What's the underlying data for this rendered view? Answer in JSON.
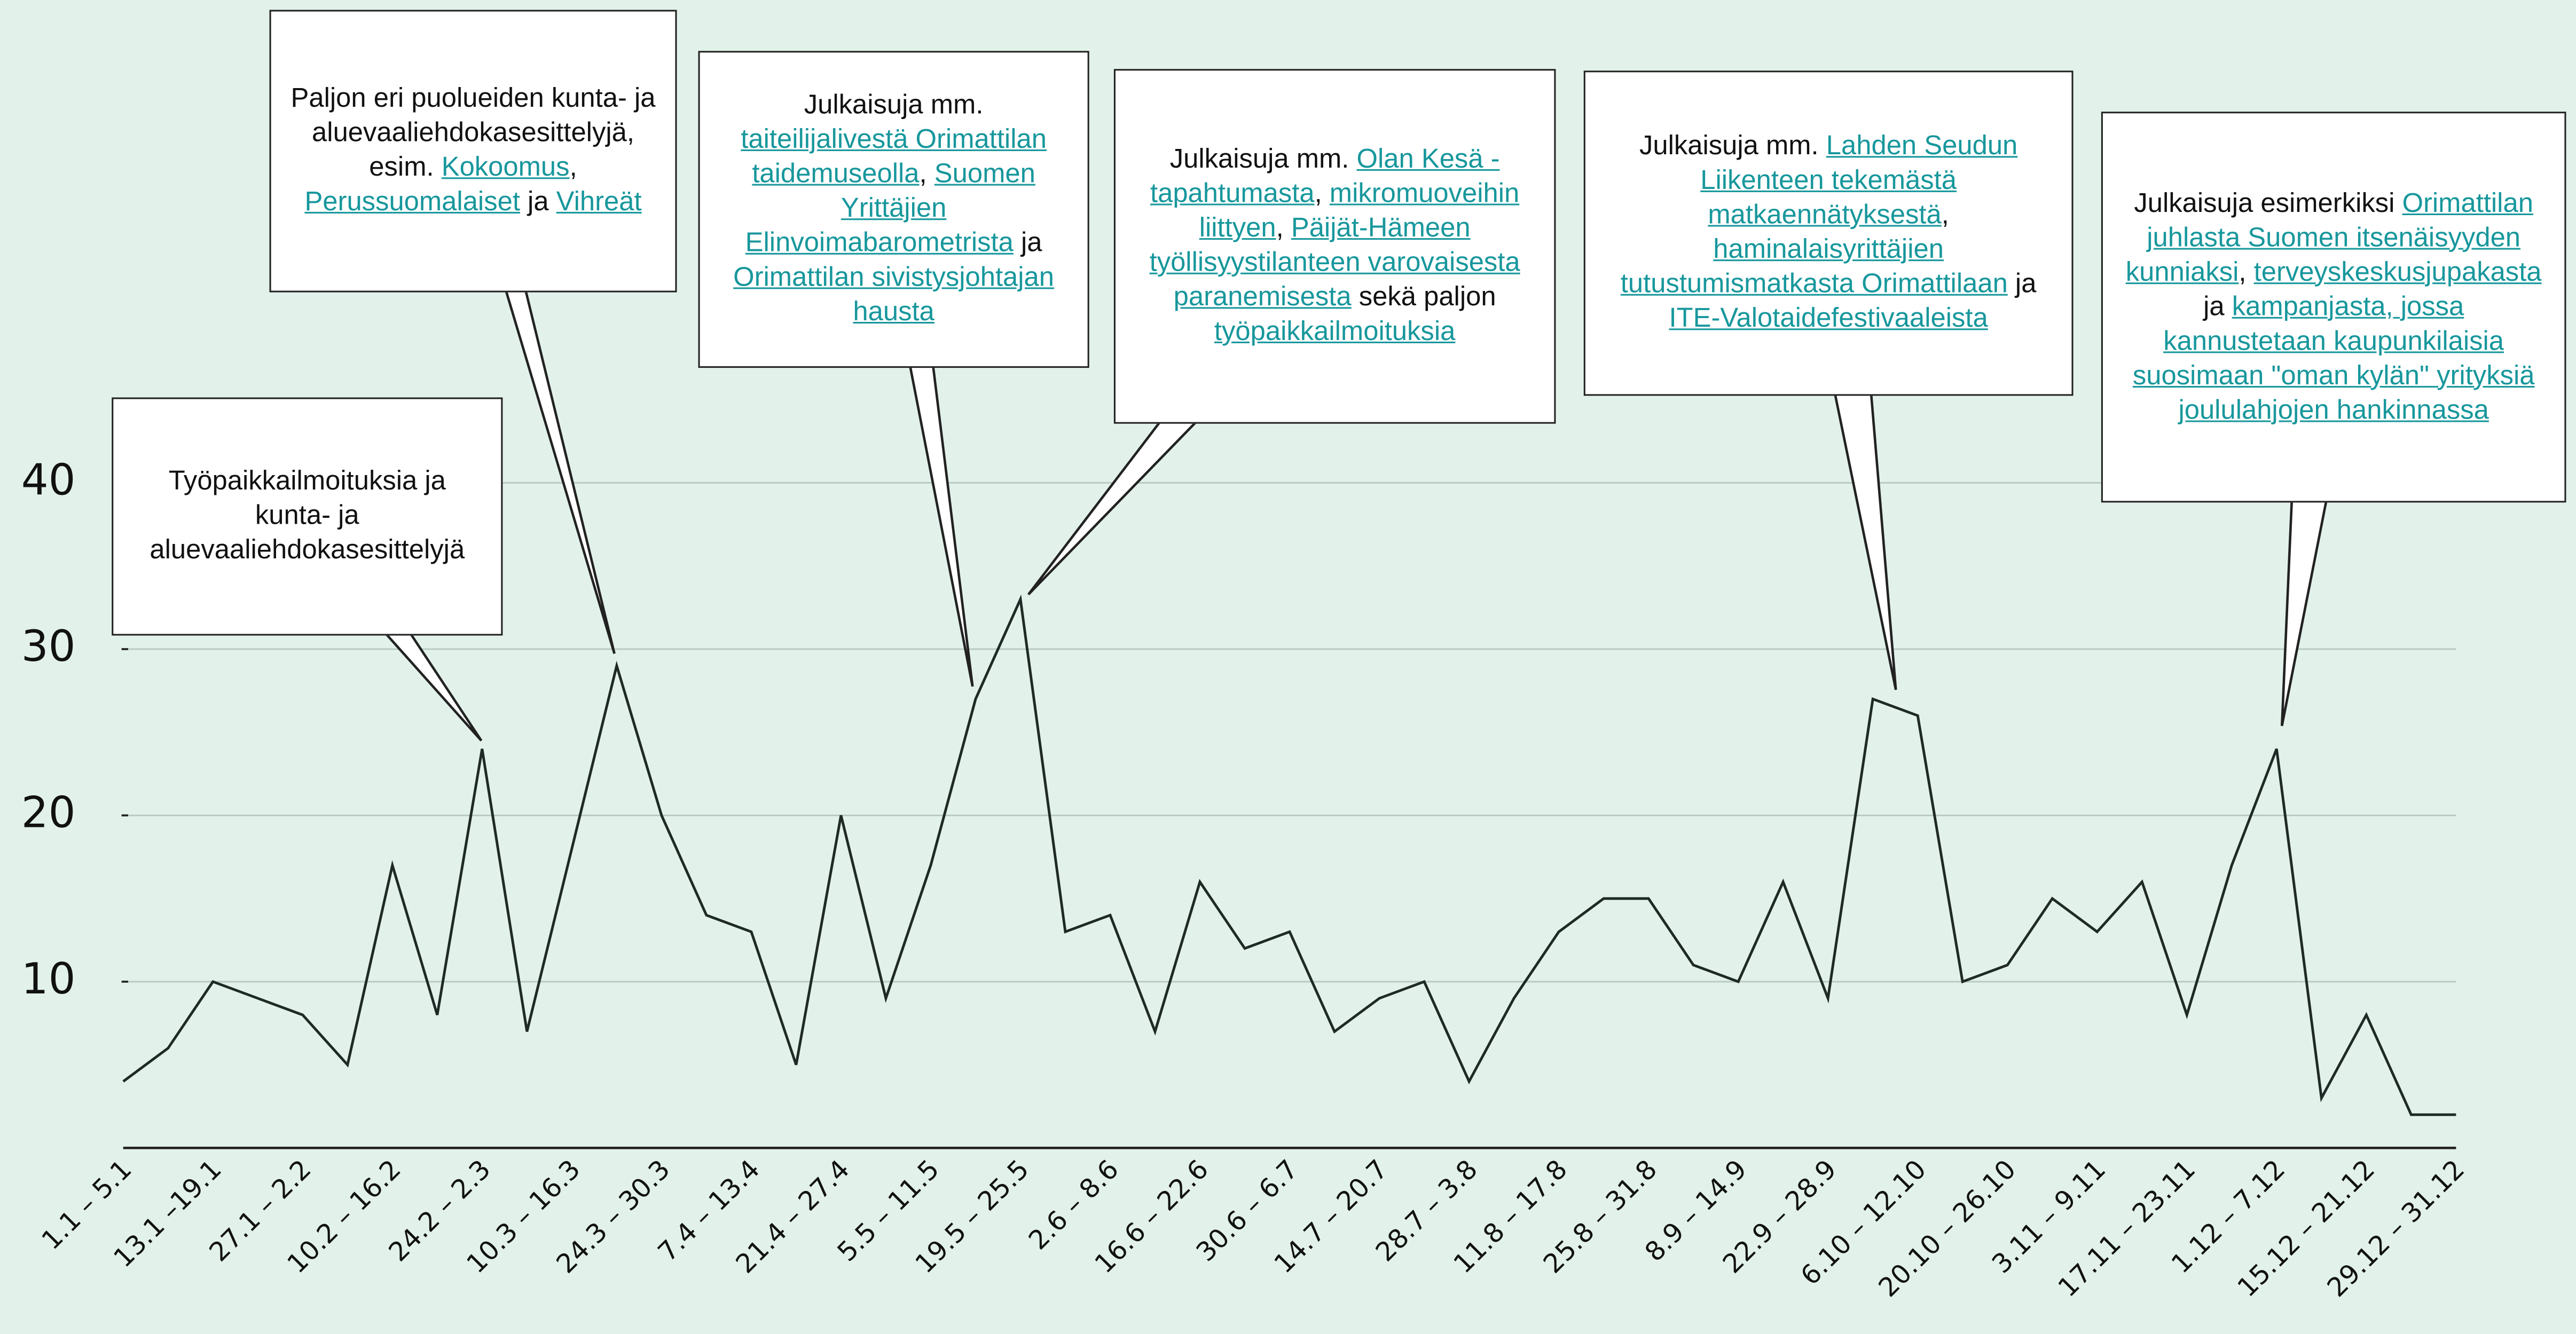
{
  "chart_data": {
    "type": "line",
    "color": "#1f2a26",
    "grid": true,
    "categories": [
      "1.1 – 5.1",
      null,
      "13.1 –19.1",
      null,
      "27.1 – 2.2",
      null,
      "10.2 – 16.2",
      null,
      "24.2 – 2.3",
      null,
      "10.3 – 16.3",
      null,
      "24.3 – 30.3",
      null,
      "7.4 – 13.4",
      null,
      "21.4 – 27.4",
      null,
      "5.5 – 11.5",
      null,
      "19.5 – 25.5",
      null,
      "2.6 – 8.6",
      null,
      "16.6 – 22.6",
      null,
      "30.6 – 6.7",
      null,
      "14.7 – 20.7",
      null,
      "28.7 – 3.8",
      null,
      "11.8 – 17.8",
      null,
      "25.8 – 31.8",
      null,
      "8.9 – 14.9",
      null,
      "22.9 – 28.9",
      null,
      "6.10 – 12.10",
      null,
      "20.10 – 26.10",
      null,
      "3.11 – 9.11",
      null,
      "17.11 – 23.11",
      null,
      "1.12 – 7.12",
      null,
      "15.12 – 21.12",
      null,
      "29.12 – 31.12"
    ],
    "values": [
      4,
      6,
      10,
      9,
      8,
      5,
      17,
      8,
      24,
      7,
      18,
      29,
      20,
      14,
      13,
      5,
      20,
      9,
      17,
      27,
      33,
      13,
      14,
      7,
      16,
      12,
      13,
      7,
      9,
      10,
      4,
      9,
      13,
      15,
      15,
      11,
      10,
      16,
      9,
      27,
      26,
      10,
      11,
      15,
      13,
      16,
      8,
      17,
      24,
      3,
      8,
      2,
      2
    ],
    "ylim": [
      0,
      40
    ],
    "yticks": [
      10,
      20,
      30,
      40
    ],
    "annotations": [
      {
        "parts": [
          {
            "text": "Työpaikkailmoituksia ja kunta- ja aluevaaliehdokasesittelyjä",
            "link": false
          }
        ]
      },
      {
        "parts": [
          {
            "text": "Paljon eri puolueiden kunta- ja aluevaaliehdokasesittelyjä, esim. ",
            "link": false
          },
          {
            "text": "Kokoomus",
            "link": true
          },
          {
            "text": ", ",
            "link": false
          },
          {
            "text": "Perussuomalaiset",
            "link": true
          },
          {
            "text": " ja ",
            "link": false
          },
          {
            "text": "Vihreät",
            "link": true
          }
        ]
      },
      {
        "parts": [
          {
            "text": "Julkaisuja mm. ",
            "link": false
          },
          {
            "text": "taiteilijalivestä Orimattilan taidemuseolla",
            "link": true
          },
          {
            "text": ", ",
            "link": false
          },
          {
            "text": "Suomen Yrittäjien Elinvoimabarometrista",
            "link": true
          },
          {
            "text": " ja ",
            "link": false
          },
          {
            "text": "Orimattilan sivistysjohtajan hausta",
            "link": true
          }
        ]
      },
      {
        "parts": [
          {
            "text": "Julkaisuja mm. ",
            "link": false
          },
          {
            "text": "Olan Kesä -tapahtumasta",
            "link": true
          },
          {
            "text": ", ",
            "link": false
          },
          {
            "text": "mikromuoveihin liittyen",
            "link": true
          },
          {
            "text": ", ",
            "link": false
          },
          {
            "text": "Päijät-Hämeen työllisyystilanteen varovaisesta paranemisesta",
            "link": true
          },
          {
            "text": " sekä paljon ",
            "link": false
          },
          {
            "text": "työpaikkailmoituksia",
            "link": true
          }
        ]
      },
      {
        "parts": [
          {
            "text": "Julkaisuja mm. ",
            "link": false
          },
          {
            "text": "Lahden Seudun Liikenteen tekemästä matkaennätyksestä",
            "link": true
          },
          {
            "text": ", ",
            "link": false
          },
          {
            "text": "haminalaisyrittäjien tutustumismatkasta Orimattilaan",
            "link": true
          },
          {
            "text": " ja ",
            "link": false
          },
          {
            "text": "ITE-Valotaidefestivaaleista",
            "link": true
          }
        ]
      },
      {
        "parts": [
          {
            "text": "Julkaisuja esimerkiksi ",
            "link": false
          },
          {
            "text": "Orimattilan juhlasta Suomen itsenäisyyden kunniaksi",
            "link": true
          },
          {
            "text": ", ",
            "link": false
          },
          {
            "text": "terveyskeskusjupakasta",
            "link": true
          },
          {
            "text": " ja ",
            "link": false
          },
          {
            "text": "kampanjasta, jossa kannustetaan kaupunkilaisia suosimaan \"oman kylän\" yrityksiä joululahjojen hankinnassa",
            "link": true
          }
        ]
      }
    ]
  }
}
